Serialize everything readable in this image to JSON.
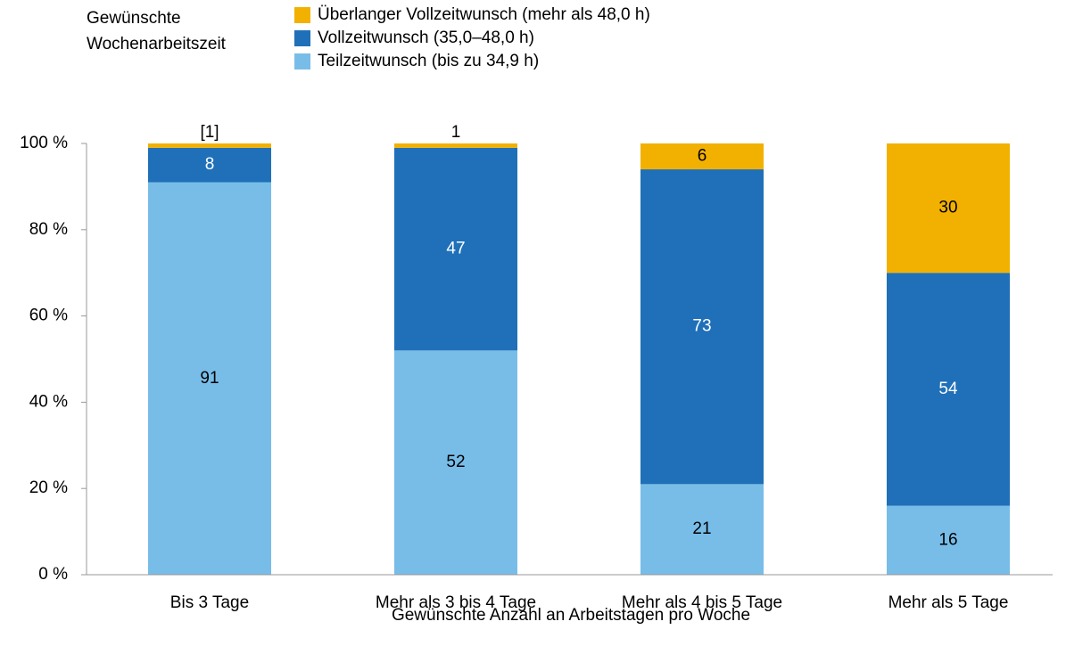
{
  "chart_data": {
    "type": "stacked_bar",
    "legend_title": "Gewünschte Wochenarbeitszeit",
    "x_label": "Gewünschte Anzahl an Arbeitstagen pro Woche",
    "categories": [
      "Bis 3 Tage",
      "Mehr als 3 bis 4 Tage",
      "Mehr als 4 bis 5 Tage",
      "Mehr als 5 Tage"
    ],
    "series": [
      {
        "name": "Teilzeitwunsch (bis zu 34,9 h)",
        "color": "#78bde8",
        "values": [
          91,
          52,
          21,
          16
        ]
      },
      {
        "name": "Vollzeitwunsch (35,0–48,0 h)",
        "color": "#1f70b8",
        "values": [
          8,
          47,
          73,
          54
        ]
      },
      {
        "name": "Überlanger Vollzeitwunsch (mehr als 48,0 h)",
        "color": "#f2b100",
        "values": [
          1,
          1,
          6,
          30
        ],
        "value_labels": [
          "[1]",
          "1",
          "6",
          "30"
        ]
      }
    ],
    "ylim": [
      0,
      100
    ],
    "yticks": [
      {
        "value": 0,
        "label": "0 %"
      },
      {
        "value": 20,
        "label": "20 %"
      },
      {
        "value": 40,
        "label": "40 %"
      },
      {
        "value": 60,
        "label": "60 %"
      },
      {
        "value": 80,
        "label": "80 %"
      },
      {
        "value": 100,
        "label": "100 %"
      }
    ]
  }
}
